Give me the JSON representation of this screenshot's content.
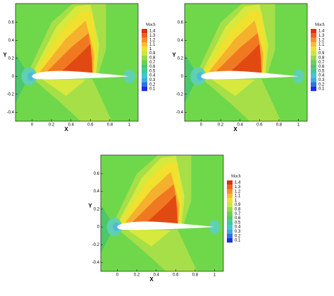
{
  "panels": [
    {
      "x_label": "X",
      "y_label": "Y",
      "xticks": [
        0,
        0.2,
        0.4,
        0.6,
        0.8,
        1
      ],
      "yticks": [
        -0.4,
        -0.2,
        0,
        0.2,
        0.4,
        0.6
      ],
      "legend_title": "Mach",
      "levels": [
        1.4,
        1.3,
        1.2,
        1.1,
        1,
        0.9,
        0.8,
        0.7,
        0.6,
        0.5,
        0.4,
        0.3,
        0.2,
        0.1
      ]
    },
    {
      "x_label": "X",
      "y_label": "Y",
      "xticks": [
        0,
        0.2,
        0.4,
        0.6,
        0.8,
        1
      ],
      "yticks": [
        -0.4,
        -0.2,
        0,
        0.2,
        0.4,
        0.6
      ],
      "legend_title": "Mach",
      "levels": [
        1.4,
        1.3,
        1.2,
        1.1,
        1,
        0.9,
        0.8,
        0.7,
        0.6,
        0.5,
        0.4,
        0.3,
        0.2,
        0.1
      ]
    },
    {
      "x_label": "X",
      "y_label": "Y",
      "xticks": [
        0,
        0.2,
        0.4,
        0.6,
        0.8,
        1
      ],
      "yticks": [
        -0.4,
        -0.2,
        0,
        0.2,
        0.4,
        0.6
      ],
      "legend_title": "Mach",
      "levels": [
        1.4,
        1.3,
        1.2,
        1.1,
        1,
        0.9,
        0.8,
        0.7,
        0.6,
        0.5,
        0.4,
        0.3,
        0.2,
        0.1
      ]
    }
  ]
}
